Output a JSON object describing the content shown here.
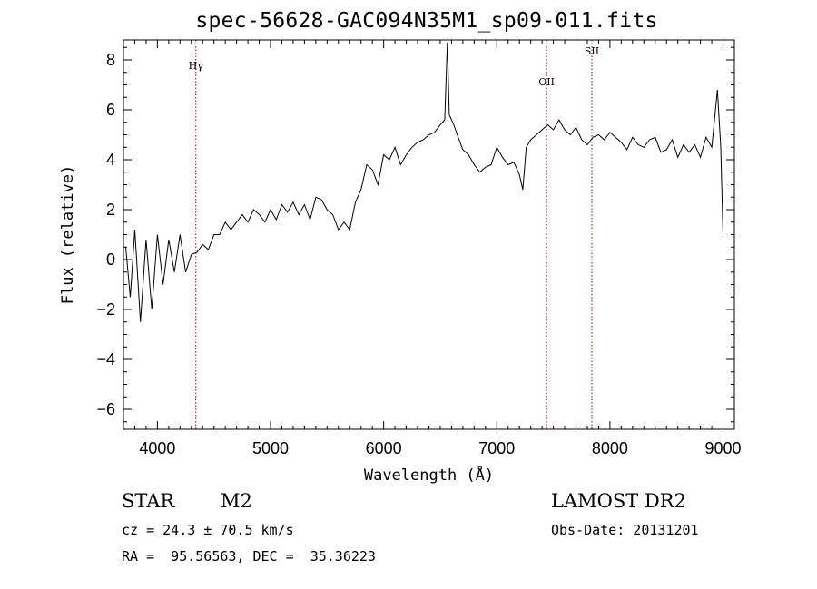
{
  "chart_data": {
    "type": "line",
    "title": "spec-56628-GAC094N35M1_sp09-011.fits",
    "xlabel": "Wavelength (Å)",
    "ylabel": "Flux (relative)",
    "xlim": [
      3700,
      9100
    ],
    "ylim": [
      -6.8,
      8.8
    ],
    "x_ticks": [
      4000,
      5000,
      6000,
      7000,
      8000,
      9000
    ],
    "y_ticks": [
      -6,
      -4,
      -2,
      0,
      2,
      4,
      6,
      8
    ],
    "grid": false,
    "line_color": "#000000",
    "series": [
      {
        "x": [
          3720,
          3760,
          3800,
          3850,
          3900,
          3950,
          4000,
          4050,
          4100,
          4150,
          4200,
          4250,
          4300,
          4350,
          4400,
          4450,
          4500,
          4550,
          4600,
          4650,
          4700,
          4750,
          4800,
          4850,
          4900,
          4950,
          5000,
          5050,
          5100,
          5150,
          5200,
          5250,
          5300,
          5350,
          5400,
          5450,
          5500,
          5550,
          5600,
          5650,
          5700,
          5750,
          5800,
          5850,
          5900,
          5950,
          6000,
          6050,
          6100,
          6150,
          6200,
          6250,
          6300,
          6350,
          6400,
          6450,
          6500,
          6540,
          6563,
          6580,
          6620,
          6650,
          6700,
          6750,
          6800,
          6850,
          6900,
          6950,
          7000,
          7050,
          7100,
          7150,
          7200,
          7230,
          7260,
          7300,
          7350,
          7400,
          7450,
          7500,
          7550,
          7600,
          7650,
          7700,
          7750,
          7800,
          7850,
          7900,
          7950,
          8000,
          8050,
          8100,
          8150,
          8200,
          8250,
          8300,
          8350,
          8400,
          8450,
          8500,
          8550,
          8600,
          8650,
          8700,
          8750,
          8800,
          8850,
          8900,
          8950,
          8980,
          9000
        ],
        "y": [
          0.5,
          -1.5,
          1.2,
          -2.5,
          0.8,
          -2.0,
          1.0,
          -1.0,
          0.8,
          -0.5,
          1.0,
          -0.5,
          0.2,
          0.3,
          0.6,
          0.4,
          1.0,
          1.0,
          1.5,
          1.2,
          1.5,
          1.8,
          1.5,
          2.0,
          1.8,
          1.5,
          2.0,
          1.6,
          2.2,
          1.9,
          2.3,
          1.8,
          2.2,
          1.6,
          2.5,
          2.4,
          2.0,
          1.8,
          1.2,
          1.5,
          1.2,
          2.3,
          2.8,
          3.8,
          3.6,
          3.0,
          4.2,
          4.0,
          4.5,
          3.8,
          4.2,
          4.5,
          4.7,
          4.8,
          5.0,
          5.1,
          5.4,
          5.6,
          8.7,
          5.8,
          5.4,
          5.0,
          4.4,
          4.2,
          3.8,
          3.5,
          3.7,
          3.8,
          4.5,
          4.1,
          3.8,
          3.9,
          3.4,
          2.8,
          4.5,
          4.8,
          5.0,
          5.2,
          5.4,
          5.2,
          5.6,
          5.2,
          5.0,
          5.3,
          4.8,
          4.6,
          4.9,
          5.0,
          4.8,
          5.1,
          4.9,
          4.7,
          4.4,
          4.9,
          4.6,
          4.5,
          4.8,
          4.9,
          4.3,
          4.4,
          4.8,
          4.1,
          4.6,
          4.3,
          4.6,
          4.1,
          4.9,
          4.5,
          6.8,
          4.5,
          1.0
        ]
      }
    ],
    "lines": [
      {
        "label": "Hγ",
        "x": 4340
      },
      {
        "label": "OII",
        "x": 7440
      },
      {
        "label": "SII",
        "x": 7840
      }
    ]
  },
  "info": {
    "class": "STAR",
    "subclass": "M2",
    "cz": "cz = 24.3 ± 70.5 km/s",
    "coords": "RA =  95.56563, DEC =  35.36223",
    "survey": "LAMOST DR2",
    "obs_date": "Obs-Date: 20131201"
  }
}
